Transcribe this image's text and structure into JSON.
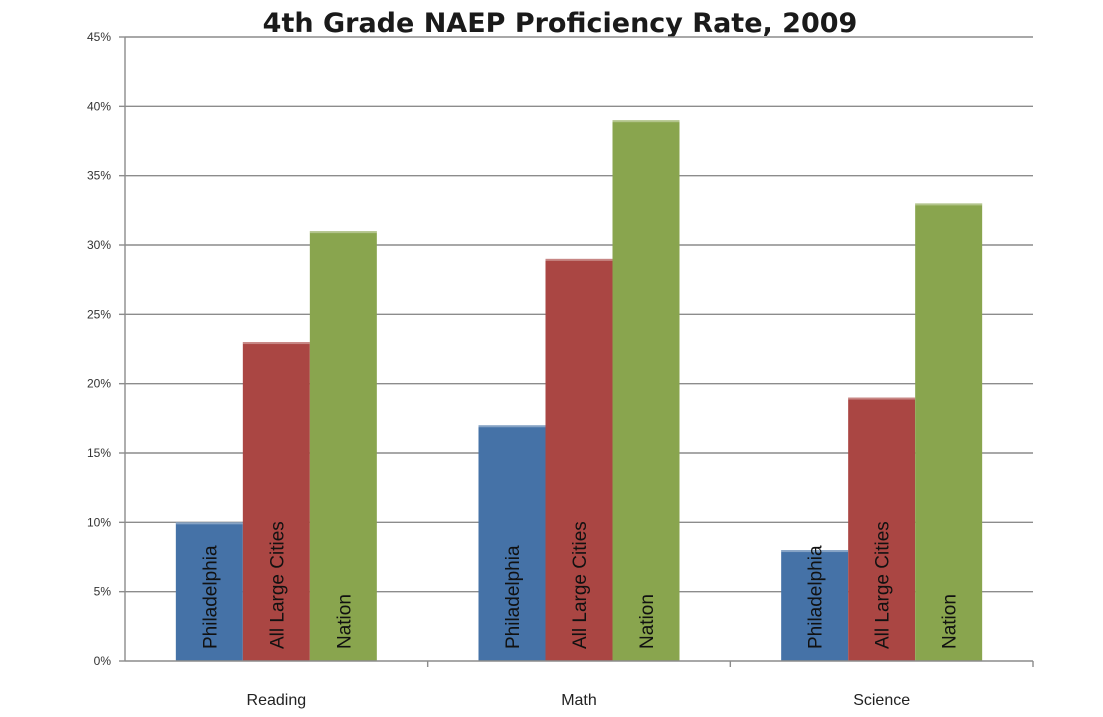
{
  "chart_data": {
    "type": "bar",
    "title": "4th Grade NAEP Proficiency Rate, 2009",
    "xlabel": "",
    "ylabel": "",
    "categories": [
      "Reading",
      "Math",
      "Science"
    ],
    "series": [
      {
        "name": "Philadelphia",
        "values": [
          10,
          17,
          8
        ],
        "color": "#4572A7"
      },
      {
        "name": "All Large Cities",
        "values": [
          23,
          29,
          19
        ],
        "color": "#AA4643"
      },
      {
        "name": "Nation",
        "values": [
          31,
          39,
          33
        ],
        "color": "#89A54E"
      }
    ],
    "ylim": [
      0,
      45
    ],
    "ytick_step": 5,
    "ytick_labels": [
      "0%",
      "5%",
      "10%",
      "15%",
      "20%",
      "25%",
      "30%",
      "35%",
      "40%",
      "45%"
    ],
    "grid": true,
    "legend": "none (series names written inside bars)"
  }
}
